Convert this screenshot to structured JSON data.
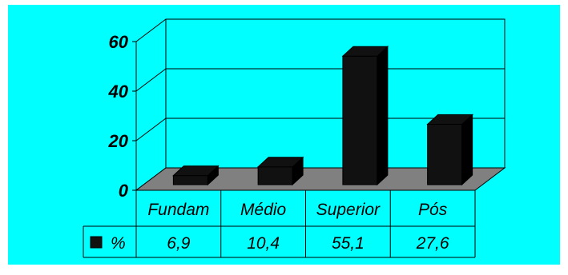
{
  "chart_data": {
    "type": "bar",
    "categories": [
      "Fundam",
      "Médio",
      "Superior",
      "Pós"
    ],
    "series": [
      {
        "name": "%",
        "values": [
          6.9,
          10.4,
          55.1,
          27.6
        ]
      }
    ],
    "table_values": [
      "6,9",
      "10,4",
      "55,1",
      "27,6"
    ],
    "ylim": [
      0,
      60
    ],
    "yticks": [
      "0",
      "20",
      "40",
      "60"
    ],
    "grid": true,
    "legend": "data-table-left",
    "three_d": true,
    "colors": {
      "background": "#00FFFF",
      "bar": "#111111",
      "bar_side": "#000000",
      "floor": "#808080",
      "line": "#000000"
    }
  }
}
